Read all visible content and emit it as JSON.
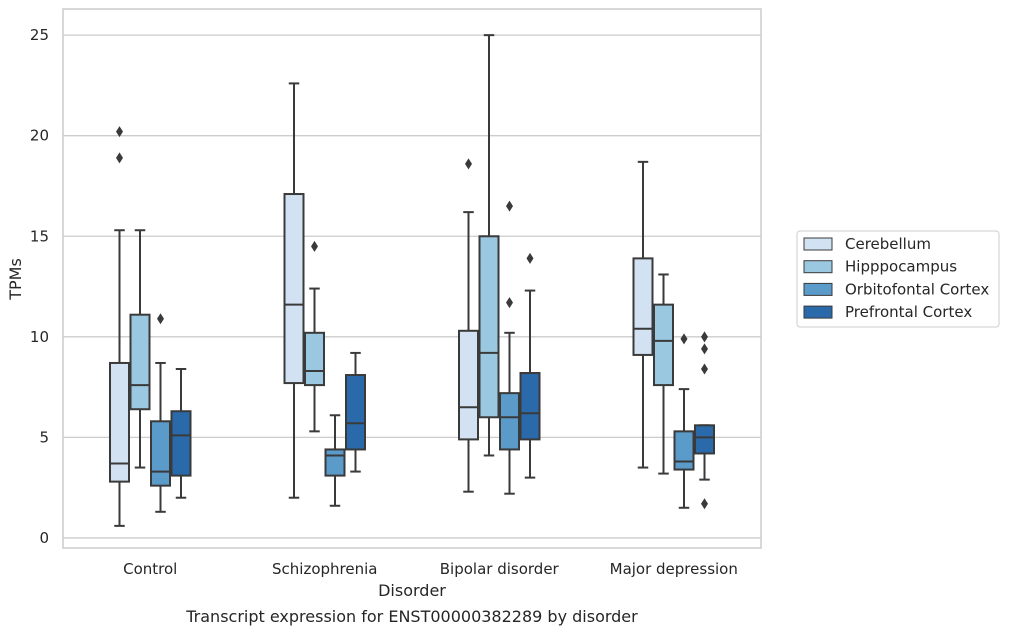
{
  "chart_data": {
    "type": "box",
    "caption": "Transcript expression for ENST00000382289 by disorder",
    "xlabel": "Disorder",
    "ylabel": "TPMs",
    "ylim": [
      -0.5,
      26.3
    ],
    "yticks": [
      0,
      5,
      10,
      15,
      20,
      25
    ],
    "grid": "horizontal",
    "legend_position": "right",
    "categories": [
      "Control",
      "Schizophrenia",
      "Bipolar disorder",
      "Major depression"
    ],
    "series": [
      {
        "name": "Cerebellum",
        "color": "#d2e2f2",
        "boxes": [
          {
            "whisker_low": 0.6,
            "q1": 2.8,
            "median": 3.7,
            "q3": 8.7,
            "whisker_high": 15.3,
            "outliers": [
              18.9,
              20.2
            ]
          },
          {
            "whisker_low": 2.0,
            "q1": 7.7,
            "median": 11.6,
            "q3": 17.1,
            "whisker_high": 22.6,
            "outliers": []
          },
          {
            "whisker_low": 2.3,
            "q1": 4.9,
            "median": 6.5,
            "q3": 10.3,
            "whisker_high": 16.2,
            "outliers": [
              18.6
            ]
          },
          {
            "whisker_low": 3.5,
            "q1": 9.1,
            "median": 10.4,
            "q3": 13.9,
            "whisker_high": 18.7,
            "outliers": []
          }
        ]
      },
      {
        "name": "Hipppocampus",
        "color": "#9ac8e0",
        "boxes": [
          {
            "whisker_low": 3.5,
            "q1": 6.4,
            "median": 7.6,
            "q3": 11.1,
            "whisker_high": 15.3,
            "outliers": []
          },
          {
            "whisker_low": 5.3,
            "q1": 7.6,
            "median": 8.3,
            "q3": 10.2,
            "whisker_high": 12.4,
            "outliers": [
              14.5
            ]
          },
          {
            "whisker_low": 4.1,
            "q1": 6.0,
            "median": 9.2,
            "q3": 15.0,
            "whisker_high": 25.0,
            "outliers": []
          },
          {
            "whisker_low": 3.2,
            "q1": 7.6,
            "median": 9.8,
            "q3": 11.6,
            "whisker_high": 13.1,
            "outliers": []
          }
        ]
      },
      {
        "name": "Orbitofontal Cortex",
        "color": "#5b9bc9",
        "boxes": [
          {
            "whisker_low": 1.3,
            "q1": 2.6,
            "median": 3.3,
            "q3": 5.8,
            "whisker_high": 8.7,
            "outliers": [
              10.9
            ]
          },
          {
            "whisker_low": 1.6,
            "q1": 3.1,
            "median": 4.1,
            "q3": 4.4,
            "whisker_high": 6.1,
            "outliers": []
          },
          {
            "whisker_low": 2.2,
            "q1": 4.4,
            "median": 6.0,
            "q3": 7.2,
            "whisker_high": 10.2,
            "outliers": [
              11.7,
              16.5
            ]
          },
          {
            "whisker_low": 1.5,
            "q1": 3.4,
            "median": 3.8,
            "q3": 5.3,
            "whisker_high": 7.4,
            "outliers": [
              9.9
            ]
          }
        ]
      },
      {
        "name": "Prefrontal Cortex",
        "color": "#2a6aaa",
        "boxes": [
          {
            "whisker_low": 2.0,
            "q1": 3.1,
            "median": 5.1,
            "q3": 6.3,
            "whisker_high": 8.4,
            "outliers": []
          },
          {
            "whisker_low": 3.3,
            "q1": 4.4,
            "median": 5.7,
            "q3": 8.1,
            "whisker_high": 9.2,
            "outliers": []
          },
          {
            "whisker_low": 3.0,
            "q1": 4.9,
            "median": 6.2,
            "q3": 8.2,
            "whisker_high": 12.3,
            "outliers": [
              13.9
            ]
          },
          {
            "whisker_low": 2.9,
            "q1": 4.2,
            "median": 5.0,
            "q3": 5.6,
            "whisker_high": 5.6,
            "outliers": [
              1.7,
              8.4,
              9.4,
              10.0
            ]
          }
        ]
      }
    ]
  }
}
